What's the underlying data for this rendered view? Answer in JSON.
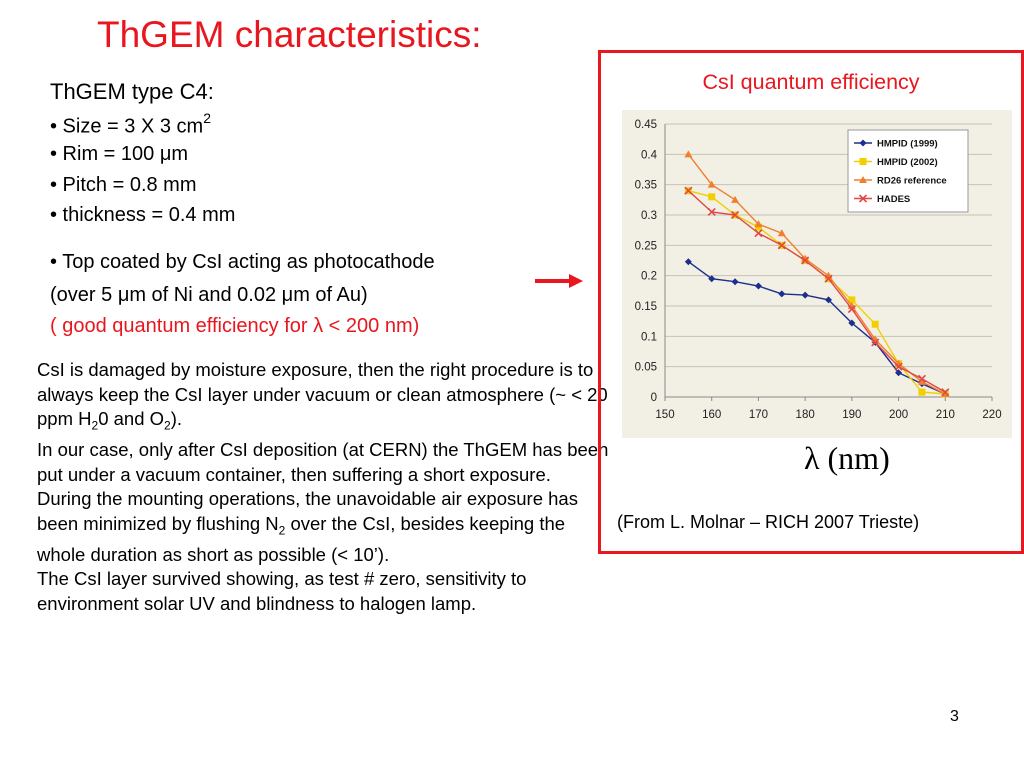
{
  "title": "ThGEM characteristics:",
  "specs": {
    "heading": "ThGEM type C4:",
    "size_label": "• Size = 3 X 3 cm",
    "size_sup": "2",
    "rim_pre": "• Rim = 100 ",
    "mu": "μ",
    "rim_post": "m",
    "pitch": "• Pitch = 0.8 mm",
    "thickness": "• thickness = 0.4 mm",
    "coated": "• Top coated by CsI acting as photocathode",
    "over_pre": "(over 5 ",
    "over_mid": "m of Ni and  0.02 ",
    "over_post": "m of Au)",
    "good_pre": " ( good quantum efficiency for ",
    "lambda": "λ",
    "good_post": " < 200 nm)"
  },
  "paragraph": {
    "p1a": "CsI  is damaged by moisture exposure, then the right procedure is to always keep the CsI layer under vacuum or clean atmosphere (~ < 20 ppm H",
    "sub2": "2",
    "p1b": "0 and O",
    "p1c": ").",
    "p2a": "In our case, only after CsI deposition (at CERN) the ThGEM has been put under a vacuum container, then suffering a short exposure. During the mounting operations, the unavoidable air exposure has been minimized by flushing N",
    "p2b": " over the CsI, besides keeping the whole duration as short as possible (< 10’).",
    "p3": "The CsI layer survived showing, as test # zero, sensitivity to environment solar UV and blindness to halogen lamp."
  },
  "chart_caption": "CsI quantum efficiency",
  "xunit": "λ (nm)",
  "source": "(From L. Molnar – RICH 2007 Trieste)",
  "page_number": "3",
  "colors": {
    "accent": "#e8161e",
    "chart_bg": "#f2efe4"
  },
  "chart_data": {
    "type": "line",
    "xlim": [
      150,
      220
    ],
    "ylim": [
      0,
      0.45
    ],
    "x_ticks": [
      "150",
      "160",
      "170",
      "180",
      "190",
      "200",
      "210",
      "220"
    ],
    "y_ticks": [
      "0",
      "0.05",
      "0.1",
      "0.15",
      "0.2",
      "0.25",
      "0.3",
      "0.35",
      "0.4",
      "0.45"
    ],
    "legend_position": "top-right",
    "grid": true,
    "series": [
      {
        "name": "HMPID (1999)",
        "color": "#1c2f8c",
        "marker": "diamond",
        "x": [
          155,
          160,
          165,
          170,
          175,
          180,
          185,
          190,
          195,
          200,
          205,
          210
        ],
        "y": [
          0.223,
          0.195,
          0.19,
          0.183,
          0.17,
          0.168,
          0.16,
          0.122,
          0.09,
          0.04,
          0.022,
          0.005
        ]
      },
      {
        "name": "HMPID (2002)",
        "color": "#f0d000",
        "marker": "square",
        "x": [
          155,
          160,
          165,
          170,
          175,
          180,
          185,
          190,
          195,
          200,
          205,
          210
        ],
        "y": [
          0.34,
          0.33,
          0.3,
          0.28,
          0.25,
          0.225,
          0.195,
          0.16,
          0.12,
          0.055,
          0.008,
          0.005
        ]
      },
      {
        "name": "RD26 reference",
        "color": "#f08030",
        "marker": "triangle",
        "x": [
          155,
          160,
          165,
          170,
          175,
          180,
          185,
          190,
          195,
          200,
          205,
          210
        ],
        "y": [
          0.4,
          0.35,
          0.325,
          0.285,
          0.27,
          0.228,
          0.2,
          0.15,
          0.095,
          0.055,
          0.025,
          0.005
        ]
      },
      {
        "name": "HADES",
        "color": "#e04848",
        "marker": "x",
        "x": [
          155,
          160,
          165,
          170,
          175,
          180,
          185,
          190,
          195,
          200,
          205,
          210
        ],
        "y": [
          0.34,
          0.305,
          0.3,
          0.27,
          0.25,
          0.225,
          0.195,
          0.145,
          0.09,
          0.05,
          0.03,
          0.008
        ]
      }
    ]
  }
}
